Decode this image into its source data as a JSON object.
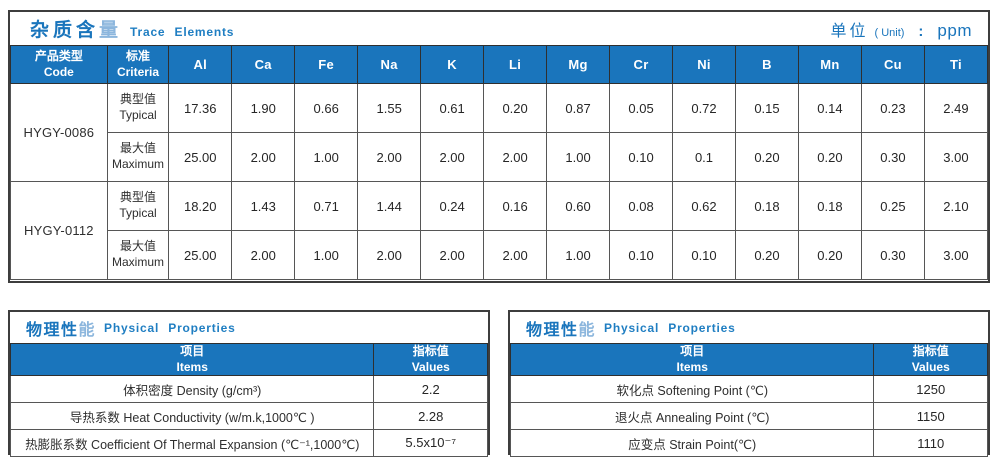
{
  "colors": {
    "accent": "#1a75bc",
    "accent_light": "#8cb6dd",
    "border": "#565656"
  },
  "trace": {
    "title_zh": "杂质含量",
    "title_en": "Trace Elements",
    "unit_zh": "单位",
    "unit_paren": "( Unit)",
    "unit_colon": ":",
    "unit_value": "ppm",
    "header": {
      "code_zh": "产品类型",
      "code_en": "Code",
      "criteria_zh": "标准",
      "criteria_en": "Criteria",
      "elements": [
        "Al",
        "Ca",
        "Fe",
        "Na",
        "K",
        "Li",
        "Mg",
        "Cr",
        "Ni",
        "B",
        "Mn",
        "Cu",
        "Ti"
      ]
    },
    "groups": [
      {
        "code": "HYGY-0086",
        "rows": [
          {
            "criteria_zh": "典型值",
            "criteria_en": "Typical",
            "values": [
              "17.36",
              "1.90",
              "0.66",
              "1.55",
              "0.61",
              "0.20",
              "0.87",
              "0.05",
              "0.72",
              "0.15",
              "0.14",
              "0.23",
              "2.49"
            ]
          },
          {
            "criteria_zh": "最大值",
            "criteria_en": "Maximum",
            "values": [
              "25.00",
              "2.00",
              "1.00",
              "2.00",
              "2.00",
              "2.00",
              "1.00",
              "0.10",
              "0.1",
              "0.20",
              "0.20",
              "0.30",
              "3.00"
            ]
          }
        ]
      },
      {
        "code": "HYGY-0112",
        "rows": [
          {
            "criteria_zh": "典型值",
            "criteria_en": "Typical",
            "values": [
              "18.20",
              "1.43",
              "0.71",
              "1.44",
              "0.24",
              "0.16",
              "0.60",
              "0.08",
              "0.62",
              "0.18",
              "0.18",
              "0.25",
              "2.10"
            ]
          },
          {
            "criteria_zh": "最大值",
            "criteria_en": "Maximum",
            "values": [
              "25.00",
              "2.00",
              "1.00",
              "2.00",
              "2.00",
              "2.00",
              "1.00",
              "0.10",
              "0.10",
              "0.20",
              "0.20",
              "0.30",
              "3.00"
            ]
          }
        ]
      }
    ]
  },
  "physical_left": {
    "title_zh": "物理性能",
    "title_en": "Physical Properties",
    "header": {
      "items_zh": "项目",
      "items_en": "Items",
      "values_zh": "指标值",
      "values_en": "Values"
    },
    "rows": [
      {
        "item": "体积密度 Density (g/cm³)",
        "value": "2.2"
      },
      {
        "item": "导热系数 Heat Conductivity (w/m.k,1000℃ )",
        "value": "2.28"
      },
      {
        "item": "热膨胀系数 Coefficient Of Thermal Expansion (℃⁻¹,1000℃)",
        "value": "5.5x10⁻⁷"
      }
    ]
  },
  "physical_right": {
    "title_zh": "物理性能",
    "title_en": "Physical Properties",
    "header": {
      "items_zh": "项目",
      "items_en": "Items",
      "values_zh": "指标值",
      "values_en": "Values"
    },
    "rows": [
      {
        "item": "软化点 Softening Point (℃)",
        "value": "1250"
      },
      {
        "item": "退火点 Annealing Point (℃)",
        "value": "1150"
      },
      {
        "item": "应变点 Strain Point(℃)",
        "value": "1110"
      }
    ]
  }
}
